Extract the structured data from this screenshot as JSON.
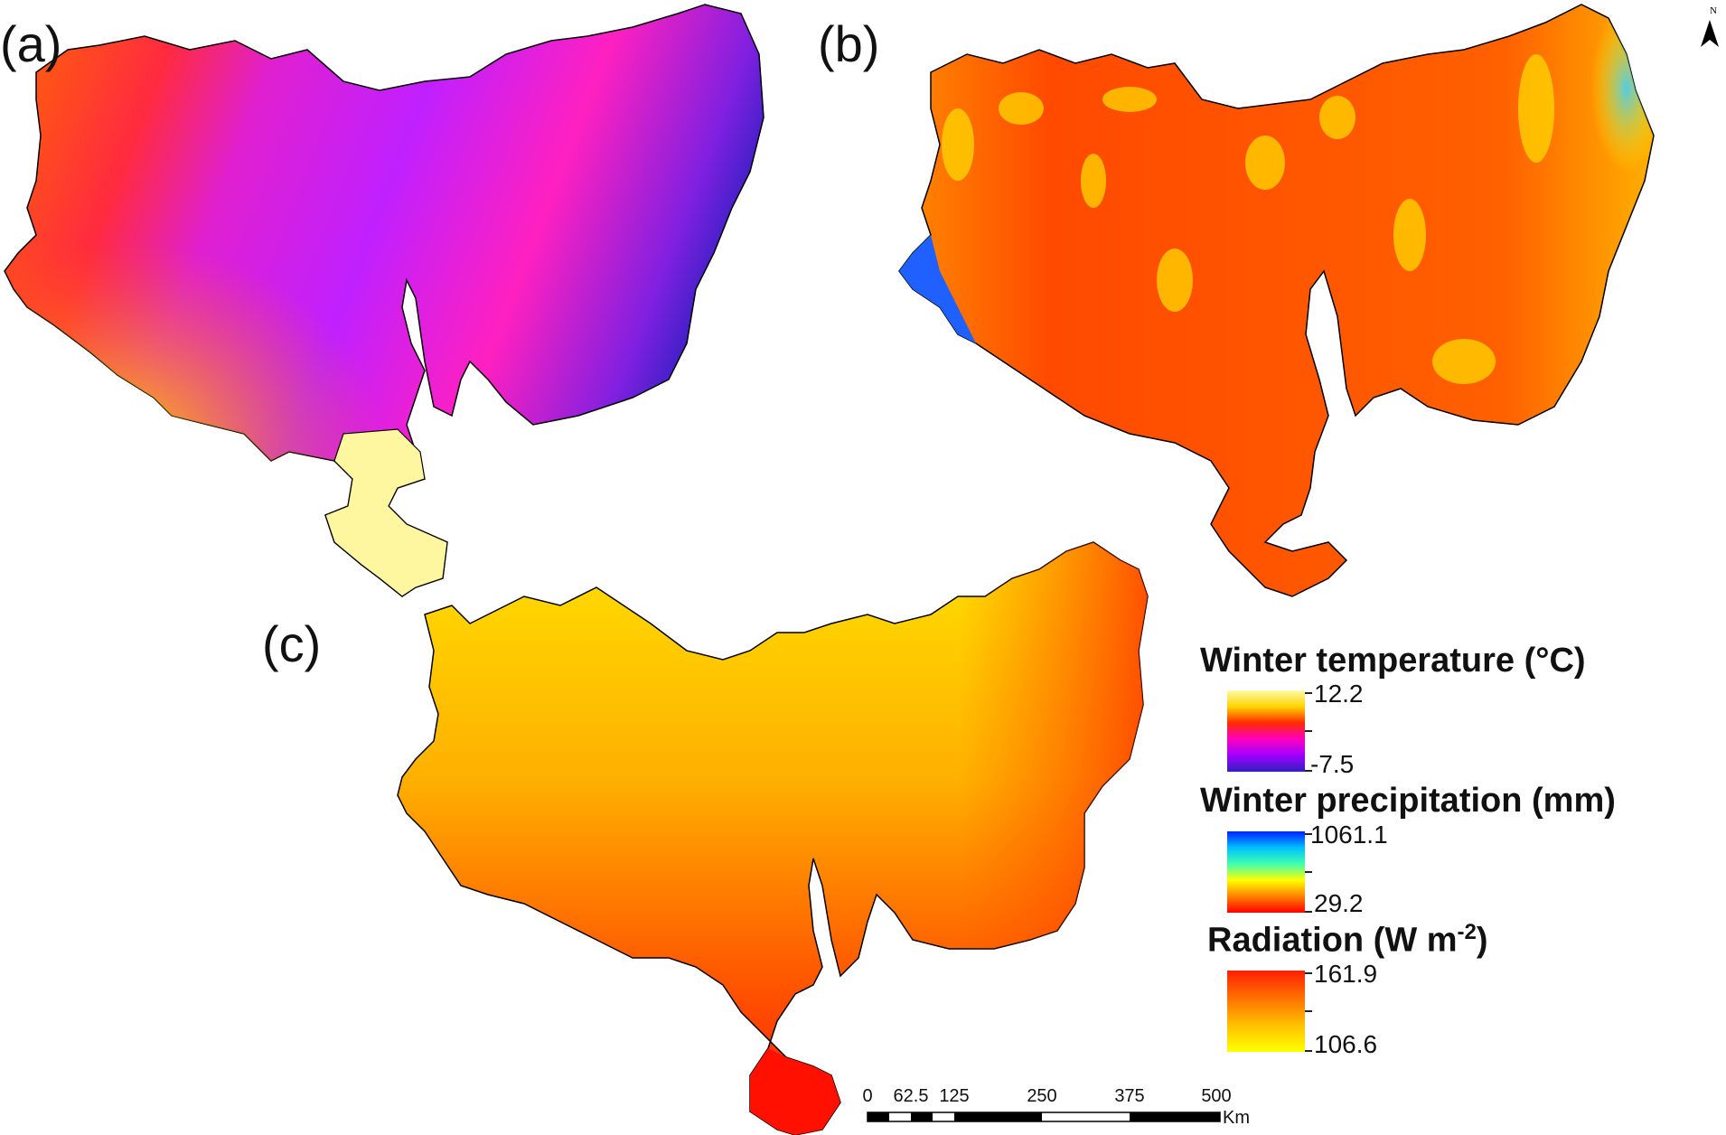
{
  "panels": {
    "a": {
      "label": "(a)"
    },
    "b": {
      "label": "(b)"
    },
    "c": {
      "label": "(c)"
    }
  },
  "north_arrow": {
    "letter": "N",
    "icon": "north-arrow-icon"
  },
  "legend": {
    "temperature": {
      "title": "Winter temperature (°C)",
      "max": "12.2",
      "min": "-7.5",
      "colors": [
        "#fffaa8",
        "#ffd400",
        "#ff2a00",
        "#ff00c0",
        "#a000ff",
        "#3020c0"
      ]
    },
    "precipitation": {
      "title": "Winter precipitation (mm)",
      "max": "1061.1",
      "min": "29.2",
      "colors": [
        "#0020ff",
        "#00c0ff",
        "#40ffb0",
        "#ffff00",
        "#ff8000",
        "#ff0000"
      ]
    },
    "radiation": {
      "title_main": "Radiation (W m",
      "title_sup": "-2",
      "title_end": ")",
      "max": "161.9",
      "min": "106.6",
      "colors": [
        "#ff2000",
        "#ff7000",
        "#ffc000",
        "#ffff00"
      ]
    }
  },
  "scale_bar": {
    "labels": [
      "0",
      "62.5",
      "125",
      "250",
      "375",
      "500"
    ],
    "unit": "Km"
  }
}
